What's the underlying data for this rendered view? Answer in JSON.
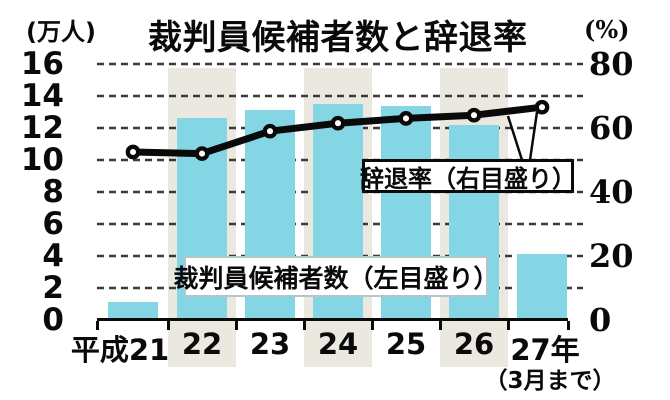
{
  "title": "裁判員候補者数と辞退率",
  "axes": {
    "left": {
      "unit": "(万人)",
      "ticks": [
        "16",
        "14",
        "12",
        "10",
        "8",
        "6",
        "4",
        "2",
        "0"
      ]
    },
    "right": {
      "unit": "(%)",
      "ticks": [
        "80",
        "60",
        "40",
        "20",
        "0"
      ]
    }
  },
  "x_axis": {
    "labels": [
      "平成21",
      "22",
      "23",
      "24",
      "25",
      "26",
      "27年"
    ],
    "note": "（3月まで）"
  },
  "annotations": {
    "line_label": "辞退率（右目盛り）",
    "bar_label": "裁判員候補者数（左目盛り）"
  },
  "colors": {
    "bar": "#85d6e4",
    "band": "#ebe8e0",
    "line": "#0a0a0a",
    "marker_fill": "#ffffff",
    "grid": "#3a3a3a",
    "background": "#ffffff"
  },
  "chart_data": {
    "type": "bar",
    "subtype": "dual-axis bar + line combo",
    "title": "裁判員候補者数と辞退率",
    "categories": [
      "平成21",
      "22",
      "23",
      "24",
      "25",
      "26",
      "27年（3月まで）"
    ],
    "series": [
      {
        "name": "裁判員候補者数",
        "type": "bar",
        "axis": "left",
        "unit": "万人",
        "values": [
          1.1,
          12.6,
          13.1,
          13.5,
          13.4,
          12.2,
          4.1
        ]
      },
      {
        "name": "辞退率",
        "type": "line",
        "axis": "right",
        "unit": "%",
        "values": [
          52.5,
          52,
          59,
          61.5,
          63,
          64,
          66.5
        ]
      }
    ],
    "ylim_left": [
      0,
      16
    ],
    "ylim_right": [
      0,
      80
    ],
    "grid": "horizontal dashed lines every 2万人 (left) / 10% (right)",
    "highlighted_categories": [
      "22",
      "24",
      "26"
    ],
    "legend_position": "callout boxes inside plot area"
  }
}
